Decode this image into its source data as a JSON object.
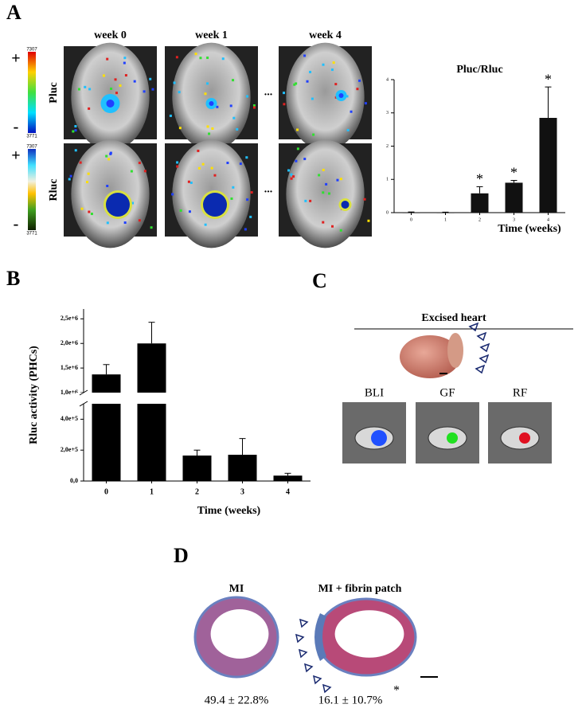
{
  "labels": {
    "a": "A",
    "b": "B",
    "c": "C",
    "d": "D"
  },
  "panel_a": {
    "columns": [
      "week 0",
      "week 1",
      "week 4"
    ],
    "rows": [
      "Pluc",
      "Rluc"
    ],
    "ellipsis": "...",
    "scale": {
      "plus": "+",
      "minus": "-",
      "max": "7307",
      "min": "3771"
    }
  },
  "panel_c": {
    "title": "Excised heart",
    "images": [
      "BLI",
      "GF",
      "RF"
    ]
  },
  "panel_d": {
    "groups": [
      {
        "name": "MI",
        "value_label": "49.4 ± 22.8%"
      },
      {
        "name": "MI + fibrin patch",
        "value_label": "16.1 ± 10.7%",
        "mark": "*"
      }
    ]
  },
  "chart_data": [
    {
      "type": "bar",
      "title": "Pluc/Rluc",
      "x_label": "Time (weeks)",
      "categories": [
        "0",
        "1",
        "2",
        "3",
        "4"
      ],
      "values": [
        0.01,
        0.01,
        0.58,
        0.9,
        2.85
      ],
      "errors": [
        0.01,
        0.005,
        0.2,
        0.07,
        0.93
      ],
      "color": "#111111",
      "ylim": [
        0,
        4
      ],
      "yticks": [
        0,
        1,
        2,
        3,
        4
      ],
      "annotations": [
        {
          "x": "2",
          "text": "*"
        },
        {
          "x": "3",
          "text": "*"
        },
        {
          "x": "4",
          "text": "*"
        }
      ]
    },
    {
      "type": "bar",
      "x_label": "Time (weeks)",
      "y_label": "Rluc activity (PHCs)",
      "categories": [
        "0",
        "1",
        "2",
        "3",
        "4"
      ],
      "values": [
        1370000,
        2000000,
        165000,
        170000,
        35000
      ],
      "errors": [
        200000,
        430000,
        35000,
        105000,
        15000
      ],
      "color": "#000000",
      "ylim": [
        0,
        2700000
      ],
      "y_break": [
        500000,
        1000000
      ],
      "yticks": [
        {
          "value": 0,
          "label": "0,0"
        },
        {
          "value": 200000,
          "label": "2,0e+5"
        },
        {
          "value": 400000,
          "label": "4,0e+5"
        },
        {
          "value": 1000000,
          "label": "1,0e+6"
        },
        {
          "value": 1500000,
          "label": "1,5e+6"
        },
        {
          "value": 2000000,
          "label": "2,0e+6"
        },
        {
          "value": 2500000,
          "label": "2,5e+6"
        }
      ]
    }
  ]
}
